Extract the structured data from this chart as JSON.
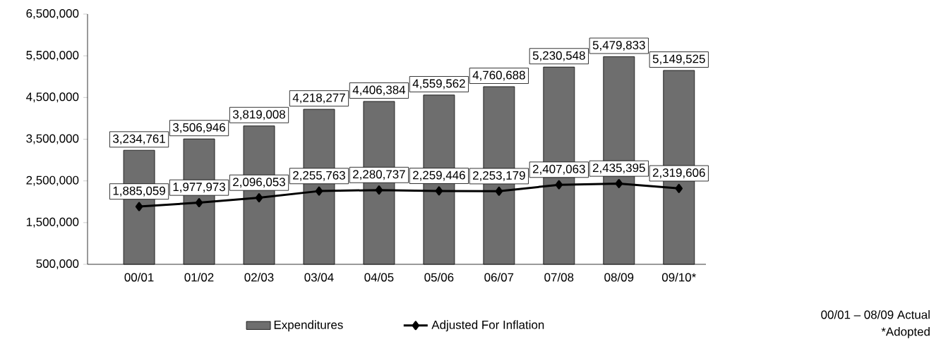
{
  "chart_data": {
    "type": "bar",
    "categories": [
      "00/01",
      "01/02",
      "02/03",
      "03/04",
      "04/05",
      "05/06",
      "06/07",
      "07/08",
      "08/09",
      "09/10*"
    ],
    "series": [
      {
        "name": "Expenditures",
        "color": "#6e6e6e",
        "values": [
          3234761,
          3506946,
          3819008,
          4218277,
          4406384,
          4559562,
          4760688,
          5230548,
          5479833,
          5149525
        ],
        "value_labels": [
          "3,234,761",
          "3,506,946",
          "3,819,008",
          "4,218,277",
          "4,406,384",
          "4,559,562",
          "4,760,688",
          "5,230,548",
          "5,479,833",
          "5,149,525"
        ]
      },
      {
        "name": "Adjusted For Inflation",
        "type": "line",
        "color": "#000000",
        "marker": "diamond",
        "values": [
          1885059,
          1977973,
          2096053,
          2255763,
          2280737,
          2259446,
          2253179,
          2407063,
          2435395,
          2319606
        ],
        "value_labels": [
          "1,885,059",
          "1,977,973",
          "2,096,053",
          "2,255,763",
          "2,280,737",
          "2,259,446",
          "2,253,179",
          "2,407,063",
          "2,435,395",
          "2,319,606"
        ]
      }
    ],
    "ylim": [
      500000,
      6500000
    ],
    "yticks": [
      {
        "value": 500000,
        "label": "500,000"
      },
      {
        "value": 1500000,
        "label": "1,500,000"
      },
      {
        "value": 2500000,
        "label": "2,500,000"
      },
      {
        "value": 3500000,
        "label": "3,500,000"
      },
      {
        "value": 4500000,
        "label": "4,500,000"
      },
      {
        "value": 5500000,
        "label": "5,500,000"
      },
      {
        "value": 6500000,
        "label": "6,500,000"
      }
    ],
    "legend": "bottom",
    "annotations": [
      "00/01 – 08/09 Actual",
      "*Adopted"
    ]
  }
}
